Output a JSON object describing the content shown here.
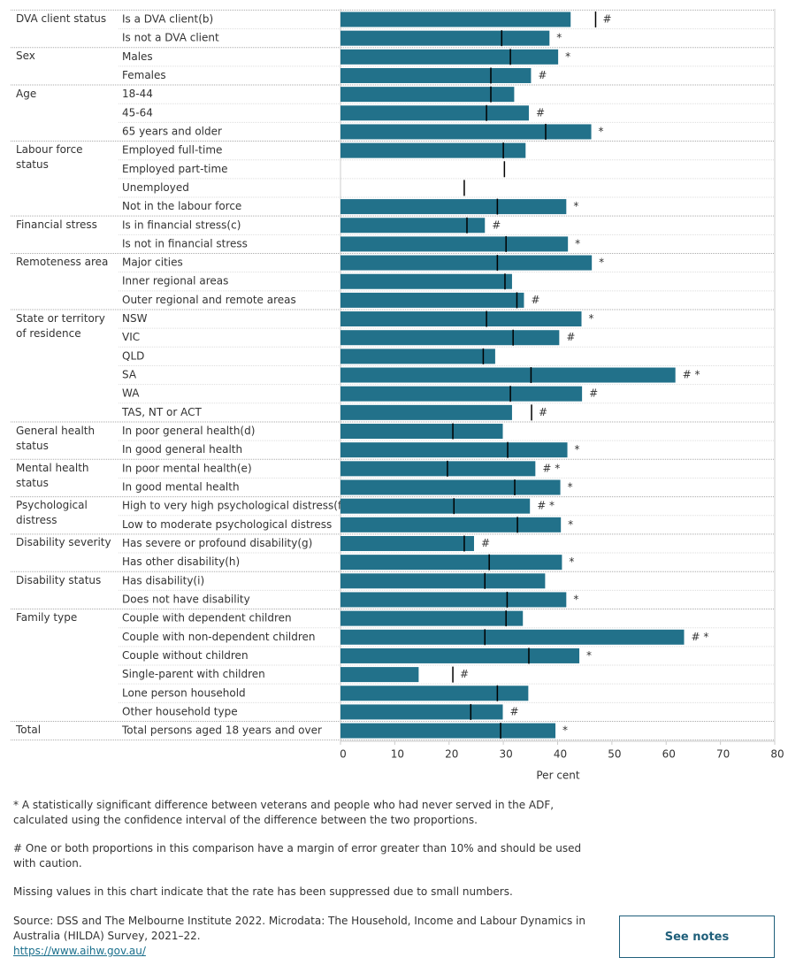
{
  "chart_data": {
    "type": "bar",
    "x_label": "Per cent",
    "xlim": [
      0,
      80
    ],
    "xticks": [
      0,
      10,
      20,
      30,
      40,
      50,
      60,
      70,
      80
    ],
    "grid": false,
    "groups": [
      "DVA client status",
      null,
      "Sex",
      null,
      "Age",
      null,
      null,
      "Labour force status",
      null,
      null,
      null,
      "Financial stress",
      null,
      "Remoteness area",
      null,
      null,
      "State or territory of residence",
      null,
      null,
      null,
      null,
      null,
      "General health status",
      null,
      "Mental health status",
      null,
      "Psychological distress",
      null,
      "Disability severity",
      null,
      "Disability status",
      null,
      "Family type",
      null,
      null,
      null,
      null,
      null,
      "Total"
    ],
    "categories": [
      "Is a DVA client(b)",
      "Is not a DVA client",
      "Males",
      "Females",
      "18-44",
      "45-64",
      "65 years and older",
      "Employed full-time",
      "Employed part-time",
      "Unemployed",
      "Not in the labour force",
      "Is in financial stress(c)",
      "Is not in financial stress",
      "Major cities",
      "Inner regional areas",
      "Outer regional and remote areas",
      "NSW",
      "VIC",
      "QLD",
      "SA",
      "WA",
      "TAS, NT or ACT",
      "In poor general health(d)",
      "In good general health",
      "In poor mental health(e)",
      "In good mental health",
      "High to very high psychological distress(f)",
      "Low to moderate psychological distress",
      "Has severe or profound disability(g)",
      "Has other disability(h)",
      "Has disability(i)",
      "Does not have disability",
      "Couple with dependent children",
      "Couple with non-dependent children",
      "Couple without children",
      "Single-parent with children",
      "Lone person household",
      "Other household type",
      "Total persons aged 18 years and over"
    ],
    "series": [
      {
        "color": "#22718a",
        "values": [
          42.4,
          38.5,
          40.1,
          35.1,
          32.0,
          34.7,
          46.2,
          34.1,
          null,
          null,
          41.6,
          26.6,
          41.9,
          46.3,
          31.6,
          33.8,
          44.4,
          40.3,
          28.5,
          61.7,
          44.5,
          31.6,
          29.9,
          41.8,
          35.9,
          40.5,
          34.9,
          40.6,
          24.6,
          40.8,
          37.7,
          41.6,
          33.6,
          63.3,
          44.0,
          14.4,
          34.6,
          29.9,
          39.6
        ]
      },
      {
        "color": "#000000",
        "values": [
          47.0,
          29.7,
          31.3,
          27.7,
          27.7,
          26.9,
          37.8,
          30.0,
          30.2,
          22.8,
          28.9,
          23.3,
          30.5,
          28.9,
          30.3,
          32.5,
          26.9,
          31.8,
          26.3,
          35.1,
          31.3,
          35.2,
          20.7,
          30.8,
          19.7,
          32.1,
          20.9,
          32.6,
          22.8,
          27.4,
          26.6,
          30.7,
          30.5,
          26.6,
          34.7,
          20.7,
          28.9,
          24.0,
          29.5
        ]
      }
    ],
    "notes": [
      "#",
      "*",
      "*",
      "#",
      null,
      "#",
      "*",
      null,
      null,
      null,
      "*",
      "#",
      "*",
      "*",
      null,
      "#",
      "*",
      "#",
      null,
      "# *",
      "#",
      "#",
      null,
      "*",
      "# *",
      "*",
      "# *",
      "*",
      "#",
      "*",
      null,
      "*",
      null,
      "# *",
      "*",
      "#",
      null,
      "#",
      "*"
    ]
  },
  "footnotes": [
    "* A statistically significant difference between veterans and people who had never served in the ADF, calculated using the confidence interval of the difference between the two proportions.",
    "# One or both proportions in this comparison have a margin of error greater than 10% and should be used with caution.",
    "Missing values in this chart indicate that the rate has been suppressed due to small numbers."
  ],
  "source": "Source: DSS and The Melbourne Institute 2022. Microdata: The Household, Income and Labour Dynamics in Australia (HILDA) Survey, 2021–22.",
  "link": "https://www.aihw.gov.au/",
  "button": "See notes"
}
